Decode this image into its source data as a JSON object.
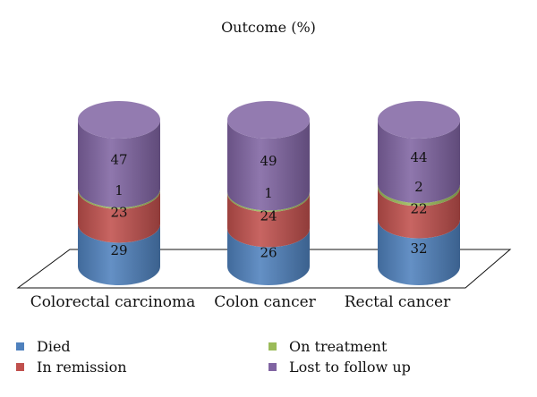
{
  "chart_data": {
    "type": "bar",
    "stacked": true,
    "title": "Outcome (%)",
    "categories": [
      "Colorectal carcinoma",
      "Colon cancer",
      "Rectal cancer"
    ],
    "series": [
      {
        "name": "Died",
        "color": "#4F81BD",
        "values": [
          29,
          26,
          32
        ]
      },
      {
        "name": "In remission",
        "color": "#C0504D",
        "values": [
          23,
          24,
          22
        ]
      },
      {
        "name": "On treatment",
        "color": "#9BBB59",
        "values": [
          1,
          1,
          2
        ]
      },
      {
        "name": "Lost to follow up",
        "color": "#8064A2",
        "values": [
          47,
          49,
          44
        ]
      }
    ],
    "ylim": [
      0,
      100
    ],
    "legend_position": "bottom"
  }
}
